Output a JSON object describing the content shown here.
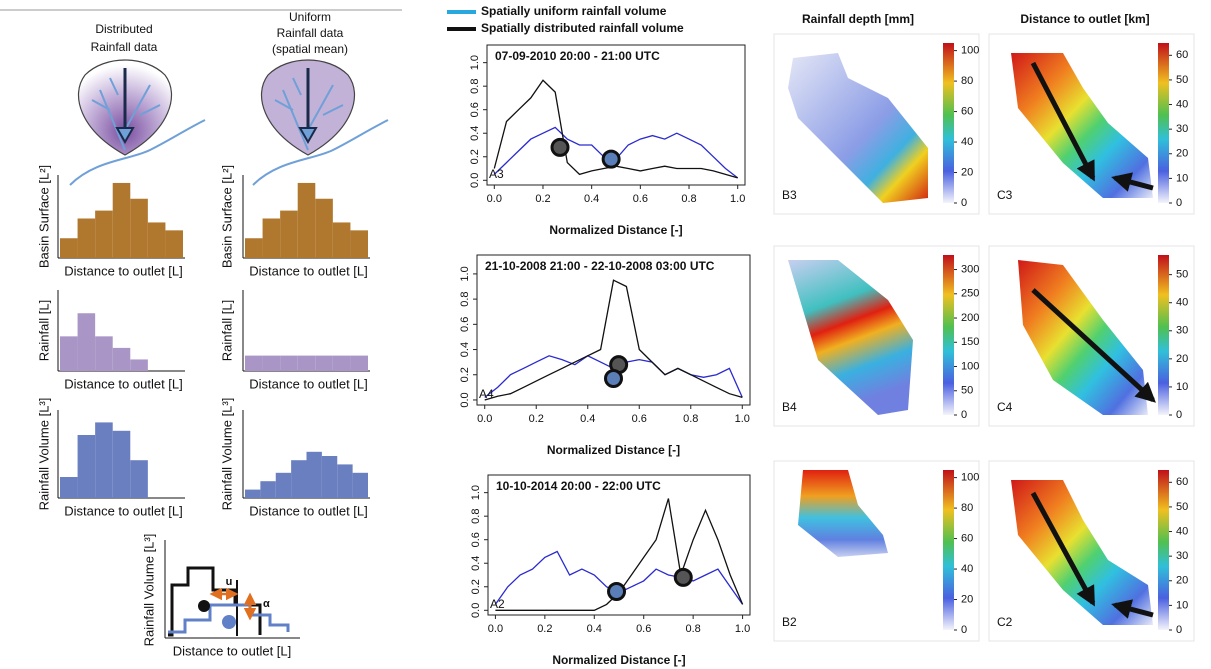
{
  "schematic": {
    "distributed_header": [
      "Distributed",
      "Rainfall data"
    ],
    "uniform_header": [
      "Uniform",
      "Rainfall data",
      "(spatial mean)"
    ],
    "rows": [
      {
        "y_label": "Basin Surface [L²]",
        "x_label": "Distance to outlet [L]",
        "color": "#b0772e",
        "distributed": [
          0.25,
          0.5,
          0.6,
          0.95,
          0.75,
          0.45,
          0.35
        ],
        "uniform": [
          0.25,
          0.5,
          0.6,
          0.95,
          0.75,
          0.45,
          0.35
        ]
      },
      {
        "y_label": "Rainfall [L]",
        "x_label": "Distance to outlet [L]",
        "color": "#a996c6",
        "distributed": [
          0.45,
          0.75,
          0.45,
          0.3,
          0.15
        ],
        "uniform": [
          0.2,
          0.2,
          0.2,
          0.2,
          0.2,
          0.2,
          0.2
        ]
      },
      {
        "y_label": "Rainfall Volume [L³]",
        "x_label": "Distance to outlet [L]",
        "color": "#6a7fc0",
        "distributed": [
          0.25,
          0.75,
          0.9,
          0.8,
          0.45
        ],
        "uniform": [
          0.1,
          0.2,
          0.3,
          0.45,
          0.55,
          0.5,
          0.4,
          0.3
        ]
      }
    ],
    "inset": {
      "y_label": "Rainfall Volume [L³]",
      "x_label": "Distance to outlet [L]",
      "u": "u",
      "alpha": "α"
    }
  },
  "chart_data": [
    {
      "type": "line",
      "title": "07-09-2010   20:00 - 21:00 UTC",
      "panel": "A3",
      "x_label": "Normalized Distance [-]",
      "x": [
        0,
        0.05,
        0.1,
        0.15,
        0.2,
        0.25,
        0.3,
        0.35,
        0.4,
        0.45,
        0.5,
        0.55,
        0.6,
        0.65,
        0.7,
        0.75,
        0.8,
        0.85,
        0.9,
        0.95,
        1.0
      ],
      "series": [
        {
          "name": "Spatially uniform rainfall volume",
          "color": "#2a2ad0",
          "values": [
            0.05,
            0.15,
            0.25,
            0.35,
            0.4,
            0.45,
            0.35,
            0.3,
            0.3,
            0.2,
            0.18,
            0.3,
            0.35,
            0.38,
            0.35,
            0.4,
            0.35,
            0.3,
            0.2,
            0.1,
            0.02
          ]
        },
        {
          "name": "Spatially distributed rainfall volume",
          "color": "#111111",
          "values": [
            0.1,
            0.5,
            0.6,
            0.7,
            0.85,
            0.75,
            0.15,
            0.05,
            0.08,
            0.1,
            0.12,
            0.1,
            0.08,
            0.1,
            0.12,
            0.1,
            0.1,
            0.1,
            0.08,
            0.05,
            0.02
          ]
        }
      ],
      "points": [
        {
          "x": 0.27,
          "y": 0.28,
          "color": "#555555"
        },
        {
          "x": 0.48,
          "y": 0.18,
          "color": "#5a7fb8"
        }
      ],
      "xlim": [
        -0.03,
        1.03
      ],
      "ylim": [
        -0.04,
        1.15
      ],
      "xticks": [
        {
          "value": 0,
          "label": "0.0"
        },
        0.2,
        0.4,
        0.6,
        0.8,
        {
          "value": 1,
          "label": "1.0"
        }
      ],
      "yticks": [
        {
          "value": 0,
          "label": "0.0"
        },
        0.2,
        0.4,
        0.6,
        0.8,
        {
          "value": 1,
          "label": "1.0"
        }
      ]
    },
    {
      "type": "line",
      "title": "21-10-2008 21:00  -  22-10-2008 03:00 UTC",
      "panel": "A4",
      "x_label": "Normalized Distance [-]",
      "x": [
        0,
        0.05,
        0.1,
        0.15,
        0.2,
        0.25,
        0.3,
        0.35,
        0.4,
        0.45,
        0.5,
        0.55,
        0.6,
        0.65,
        0.7,
        0.75,
        0.8,
        0.85,
        0.9,
        0.95,
        1.0
      ],
      "series": [
        {
          "color": "#2a2ad0",
          "values": [
            0.02,
            0.1,
            0.2,
            0.25,
            0.3,
            0.35,
            0.32,
            0.28,
            0.35,
            0.3,
            0.25,
            0.3,
            0.32,
            0.3,
            0.2,
            0.25,
            0.2,
            0.18,
            0.2,
            0.25,
            0.02
          ]
        },
        {
          "color": "#111111",
          "values": [
            0,
            0.03,
            0.05,
            0.1,
            0.15,
            0.2,
            0.25,
            0.3,
            0.35,
            0.4,
            0.95,
            0.9,
            0.4,
            0.3,
            0.2,
            0.25,
            0.2,
            0.15,
            0.1,
            0.05,
            0.02
          ]
        }
      ],
      "points": [
        {
          "x": 0.52,
          "y": 0.28,
          "color": "#555555"
        },
        {
          "x": 0.5,
          "y": 0.17,
          "color": "#5a7fb8"
        }
      ],
      "xlim": [
        -0.03,
        1.03
      ],
      "ylim": [
        -0.04,
        1.15
      ],
      "xticks": [
        {
          "value": 0,
          "label": "0.0"
        },
        0.2,
        0.4,
        0.6,
        0.8,
        {
          "value": 1,
          "label": "1.0"
        }
      ],
      "yticks": [
        {
          "value": 0,
          "label": "0.0"
        },
        0.2,
        0.4,
        0.6,
        0.8,
        {
          "value": 1,
          "label": "1.0"
        }
      ]
    },
    {
      "type": "line",
      "title": "10-10-2014   20:00 - 22:00 UTC",
      "panel": "A2",
      "x_label": "Normalized Distance [-]",
      "x": [
        0,
        0.05,
        0.1,
        0.15,
        0.2,
        0.25,
        0.3,
        0.35,
        0.4,
        0.45,
        0.5,
        0.55,
        0.6,
        0.65,
        0.7,
        0.75,
        0.8,
        0.85,
        0.9,
        0.95,
        1.0
      ],
      "series": [
        {
          "color": "#2a2ad0",
          "values": [
            0.05,
            0.2,
            0.3,
            0.35,
            0.45,
            0.5,
            0.3,
            0.35,
            0.3,
            0.2,
            0.15,
            0.2,
            0.25,
            0.35,
            0.3,
            0.28,
            0.25,
            0.3,
            0.35,
            0.2,
            0.05
          ]
        },
        {
          "color": "#111111",
          "values": [
            0,
            0,
            0,
            0,
            0,
            0,
            0,
            0,
            0,
            0.05,
            0.15,
            0.3,
            0.45,
            0.6,
            0.95,
            0.3,
            0.6,
            0.85,
            0.6,
            0.3,
            0.05
          ]
        }
      ],
      "points": [
        {
          "x": 0.49,
          "y": 0.16,
          "color": "#5a7fb8"
        },
        {
          "x": 0.76,
          "y": 0.28,
          "color": "#555555"
        }
      ],
      "xlim": [
        -0.03,
        1.03
      ],
      "ylim": [
        -0.04,
        1.15
      ],
      "xticks": [
        {
          "value": 0,
          "label": "0.0"
        },
        0.2,
        0.4,
        0.6,
        0.8,
        {
          "value": 1,
          "label": "1.0"
        }
      ],
      "yticks": [
        {
          "value": 0,
          "label": "0.0"
        },
        0.2,
        0.4,
        0.6,
        0.8,
        {
          "value": 1,
          "label": "1.0"
        }
      ]
    }
  ],
  "maps": {
    "rainfall_title": "Rainfall depth [mm]",
    "distance_title": "Distance to outlet [km]",
    "panels": [
      {
        "label": "B3",
        "clim": [
          0,
          105
        ],
        "cticks": [
          0,
          20,
          40,
          60,
          80,
          100
        ]
      },
      {
        "label": "C3",
        "clim": [
          0,
          65
        ],
        "cticks": [
          0,
          10,
          20,
          30,
          40,
          50,
          60
        ]
      },
      {
        "label": "B4",
        "clim": [
          0,
          330
        ],
        "cticks": [
          0,
          50,
          100,
          150,
          200,
          250,
          300
        ]
      },
      {
        "label": "C4",
        "clim": [
          0,
          57
        ],
        "cticks": [
          0,
          10,
          20,
          30,
          40,
          50
        ]
      },
      {
        "label": "B2",
        "clim": [
          0,
          105
        ],
        "cticks": [
          0,
          20,
          40,
          60,
          80,
          100
        ]
      },
      {
        "label": "C2",
        "clim": [
          0,
          65
        ],
        "cticks": [
          0,
          10,
          20,
          30,
          40,
          50,
          60
        ]
      }
    ]
  }
}
